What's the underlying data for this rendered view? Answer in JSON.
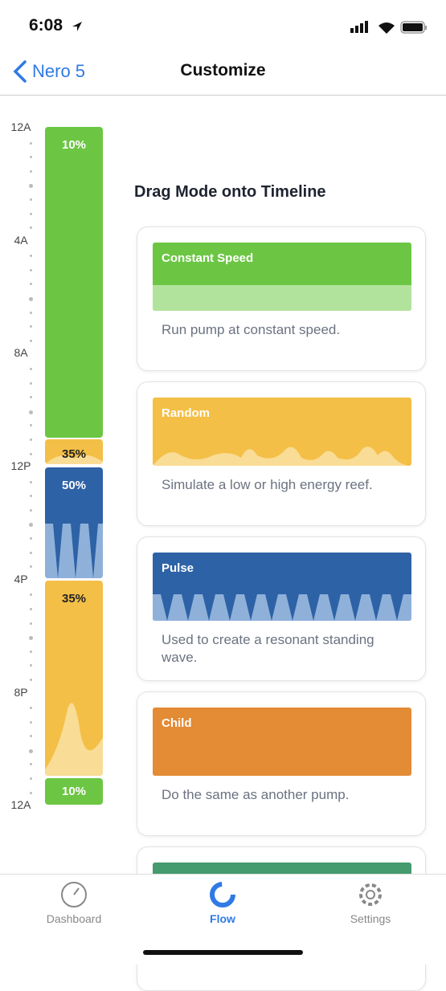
{
  "status_bar": {
    "time": "6:08"
  },
  "nav": {
    "back": "Nero 5",
    "title": "Customize"
  },
  "timeline": {
    "hours": [
      "12A",
      "4A",
      "8A",
      "12P",
      "4P",
      "8P",
      "12A"
    ],
    "segments": [
      {
        "label": "10%"
      },
      {
        "label": "35%"
      },
      {
        "label": "50%"
      },
      {
        "label": "35%"
      },
      {
        "label": "10%"
      }
    ]
  },
  "modes": {
    "heading": "Drag Mode onto Timeline",
    "cards": [
      {
        "name": "Constant Speed",
        "description": "Run pump at constant speed."
      },
      {
        "name": "Random",
        "description": "Simulate a low or high energy reef."
      },
      {
        "name": "Pulse",
        "description": "Used to create a resonant standing wave."
      },
      {
        "name": "Child",
        "description": "Do the same as another pump."
      }
    ]
  },
  "tabs": [
    {
      "label": "Dashboard"
    },
    {
      "label": "Flow"
    },
    {
      "label": "Settings"
    }
  ]
}
